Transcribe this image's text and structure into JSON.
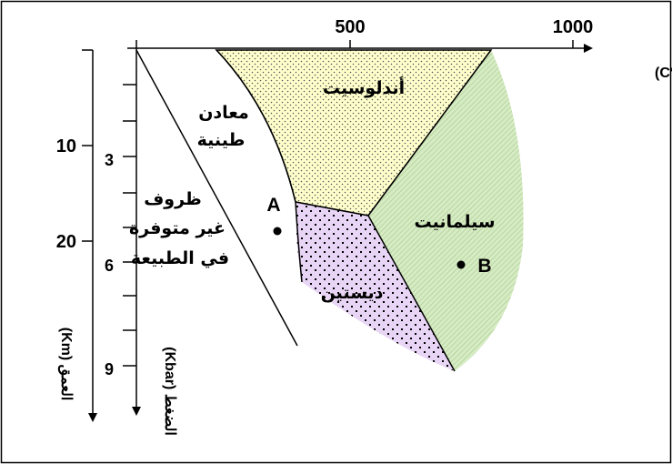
{
  "temperature_axis": {
    "label": "الحرارة (°C)",
    "ticks": [
      "500",
      "1000"
    ]
  },
  "depth_axis": {
    "label": "العمق (Km)",
    "ticks": [
      "10",
      "20"
    ]
  },
  "pressure_axis": {
    "label": "الضغط (Kbar)",
    "ticks": [
      "3",
      "6",
      "9"
    ]
  },
  "regions": {
    "andalusite": "أندلوسيت",
    "sillimanite": "سيلمانيت",
    "kyanite": "ديستين",
    "clay_minerals": [
      "معادن",
      "طينية"
    ],
    "impossible_conditions": [
      "ظروف",
      "غير متوفرة",
      "في الطبيعة"
    ]
  },
  "points": {
    "a": "A",
    "b": "B"
  },
  "colors": {
    "andalusite_fill": "#ffffcc",
    "sillimanite_fill": "#d6ebc4",
    "kyanite_fill": "#e8d5f5",
    "dot_pattern": "#000000"
  }
}
